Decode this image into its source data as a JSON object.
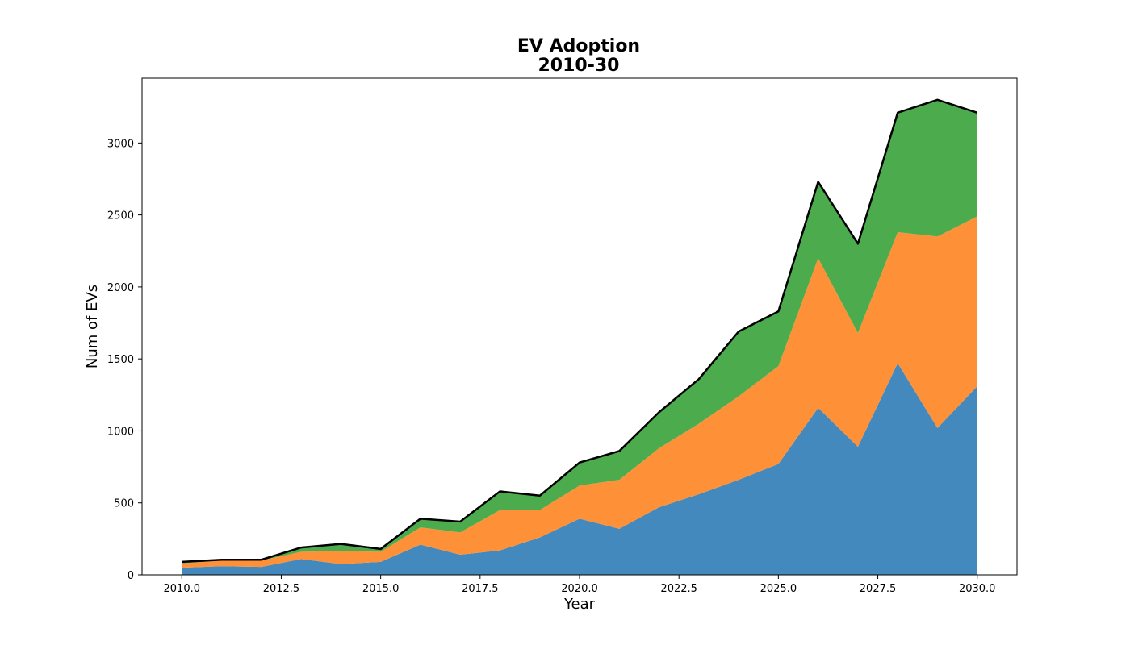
{
  "chart_data": {
    "type": "area",
    "stacked": true,
    "title_line1": "EV Adoption",
    "title_line2": "2010-30",
    "xlabel": "Year",
    "ylabel": "Num of EVs",
    "xlim": [
      2009,
      2031
    ],
    "ylim": [
      0,
      3450
    ],
    "x": [
      2010,
      2011,
      2012,
      2013,
      2014,
      2015,
      2016,
      2017,
      2018,
      2019,
      2020,
      2021,
      2022,
      2023,
      2024,
      2025,
      2026,
      2027,
      2028,
      2029,
      2030
    ],
    "x_ticks": [
      2010.0,
      2012.5,
      2015.0,
      2017.5,
      2020.0,
      2022.5,
      2025.0,
      2027.5,
      2030.0
    ],
    "x_tick_labels": [
      "2010.0",
      "2012.5",
      "2015.0",
      "2017.5",
      "2020.0",
      "2022.5",
      "2025.0",
      "2027.5",
      "2030.0"
    ],
    "y_ticks": [
      0,
      500,
      1000,
      1500,
      2000,
      2500,
      3000
    ],
    "y_tick_labels": [
      "0",
      "500",
      "1000",
      "1500",
      "2000",
      "2500",
      "3000"
    ],
    "grid": false,
    "series": [
      {
        "color": "#4389bd",
        "values": [
          50,
          60,
          55,
          110,
          75,
          90,
          210,
          140,
          170,
          260,
          390,
          320,
          470,
          560,
          660,
          770,
          1160,
          890,
          1470,
          1020,
          1310
        ]
      },
      {
        "color": "#fe9137",
        "values": [
          30,
          40,
          45,
          50,
          90,
          70,
          120,
          155,
          280,
          190,
          230,
          340,
          410,
          490,
          580,
          680,
          1040,
          790,
          910,
          1330,
          1180
        ]
      },
      {
        "color": "#4bab4d",
        "values": [
          10,
          5,
          5,
          30,
          50,
          20,
          60,
          75,
          130,
          100,
          160,
          200,
          250,
          310,
          450,
          380,
          530,
          620,
          830,
          950,
          720
        ]
      }
    ],
    "total_line_color": "#000000"
  }
}
